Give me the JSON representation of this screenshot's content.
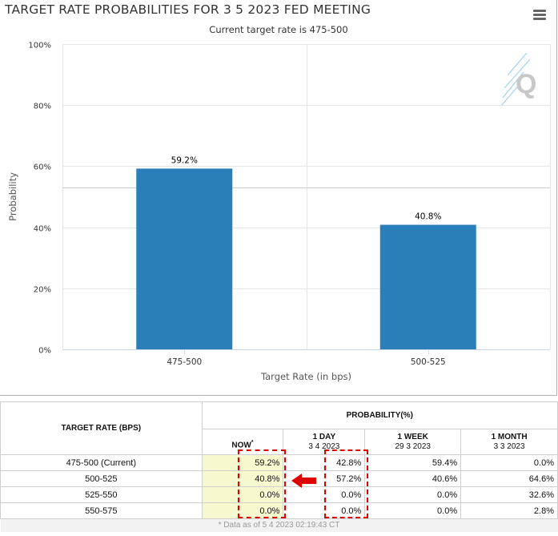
{
  "chart_data": {
    "type": "bar",
    "title": "TARGET RATE PROBABILITIES FOR 3 5 2023 FED MEETING",
    "subtitle": "Current target rate is 475-500",
    "xlabel": "Target Rate (in bps)",
    "ylabel": "Probability",
    "categories": [
      "475-500",
      "500-525"
    ],
    "values": [
      59.2,
      40.8
    ],
    "data_labels": [
      "59.2%",
      "40.8%"
    ],
    "ylim": [
      0,
      100
    ],
    "yticks": [
      0,
      20,
      40,
      60,
      80,
      100
    ],
    "ytick_labels": [
      "0%",
      "20%",
      "40%",
      "60%",
      "80%",
      "100%"
    ],
    "bar_color": "#2a7fb8",
    "grid": true
  },
  "table": {
    "rate_header": "TARGET RATE (BPS)",
    "prob_header": "PROBABILITY(%)",
    "columns": [
      {
        "label": "NOW",
        "marker": "*",
        "date": ""
      },
      {
        "label": "1 DAY",
        "date": "3 4 2023"
      },
      {
        "label": "1 WEEK",
        "date": "29 3 2023"
      },
      {
        "label": "1 MONTH",
        "date": "3 3 2023"
      }
    ],
    "rows": [
      {
        "rate": "475-500 (Current)",
        "values": [
          "59.2%",
          "42.8%",
          "59.4%",
          "0.0%"
        ]
      },
      {
        "rate": "500-525",
        "values": [
          "40.8%",
          "57.2%",
          "40.6%",
          "64.6%"
        ]
      },
      {
        "rate": "525-550",
        "values": [
          "0.0%",
          "0.0%",
          "0.0%",
          "32.6%"
        ]
      },
      {
        "rate": "550-575",
        "values": [
          "0.0%",
          "0.0%",
          "0.0%",
          "2.8%"
        ]
      }
    ],
    "footnote": "* Data as of 5 4 2023 02:19:43 CT"
  },
  "colors": {
    "highlight": "#e00000",
    "now_column_bg": "#f8f8cf"
  },
  "icons": {
    "menu": "hamburger-menu-icon",
    "logo": "q-logo-icon",
    "arrow": "left-arrow-icon"
  }
}
